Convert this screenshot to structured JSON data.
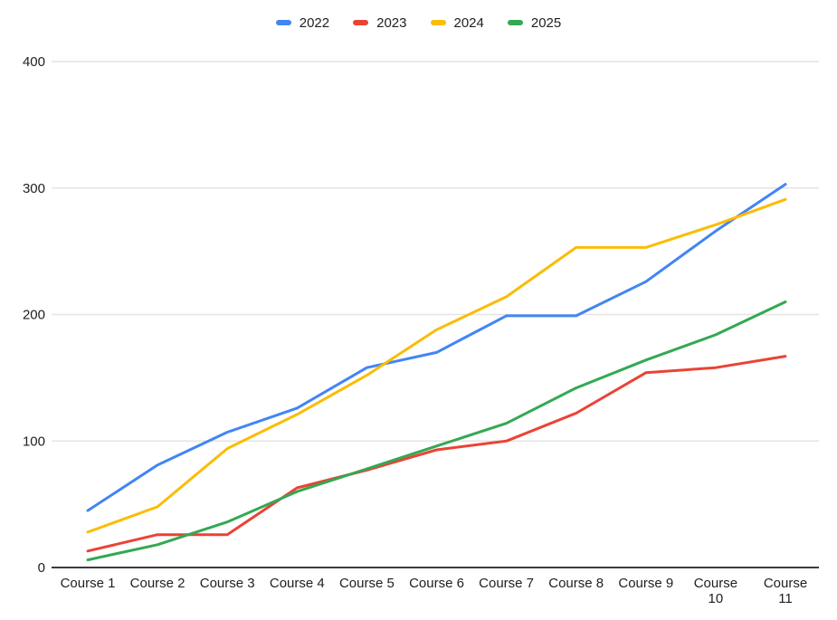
{
  "chart_data": {
    "type": "line",
    "title": "",
    "xlabel": "",
    "ylabel": "",
    "categories": [
      "Course 1",
      "Course 2",
      "Course 3",
      "Course 4",
      "Course 5",
      "Course 6",
      "Course 7",
      "Course 8",
      "Course 9",
      "Course 10",
      "Course 11"
    ],
    "x_tick_display": [
      [
        "Course 1"
      ],
      [
        "Course 2"
      ],
      [
        "Course 3"
      ],
      [
        "Course 4"
      ],
      [
        "Course 5"
      ],
      [
        "Course 6"
      ],
      [
        "Course 7"
      ],
      [
        "Course 8"
      ],
      [
        "Course 9"
      ],
      [
        "Course",
        "10"
      ],
      [
        "Course",
        "11"
      ]
    ],
    "series": [
      {
        "name": "2022",
        "color": "#4285F4",
        "values": [
          45,
          81,
          107,
          126,
          158,
          170,
          199,
          199,
          226,
          266,
          303
        ]
      },
      {
        "name": "2023",
        "color": "#EA4335",
        "values": [
          13,
          26,
          26,
          63,
          77,
          93,
          100,
          122,
          154,
          158,
          167
        ]
      },
      {
        "name": "2024",
        "color": "#FBBC04",
        "values": [
          28,
          48,
          94,
          121,
          152,
          188,
          214,
          253,
          253,
          271,
          291
        ]
      },
      {
        "name": "2025",
        "color": "#34A853",
        "values": [
          6,
          18,
          36,
          60,
          78,
          96,
          114,
          142,
          164,
          184,
          210
        ]
      }
    ],
    "ylim": [
      0,
      400
    ],
    "yticks": [
      0,
      100,
      200,
      300,
      400
    ],
    "grid": true,
    "legend_position": "top",
    "colors": {
      "background": "#ffffff",
      "grid": "#e4e4e4",
      "axis": "#3c3c3c",
      "tick_text": "#212121"
    }
  }
}
